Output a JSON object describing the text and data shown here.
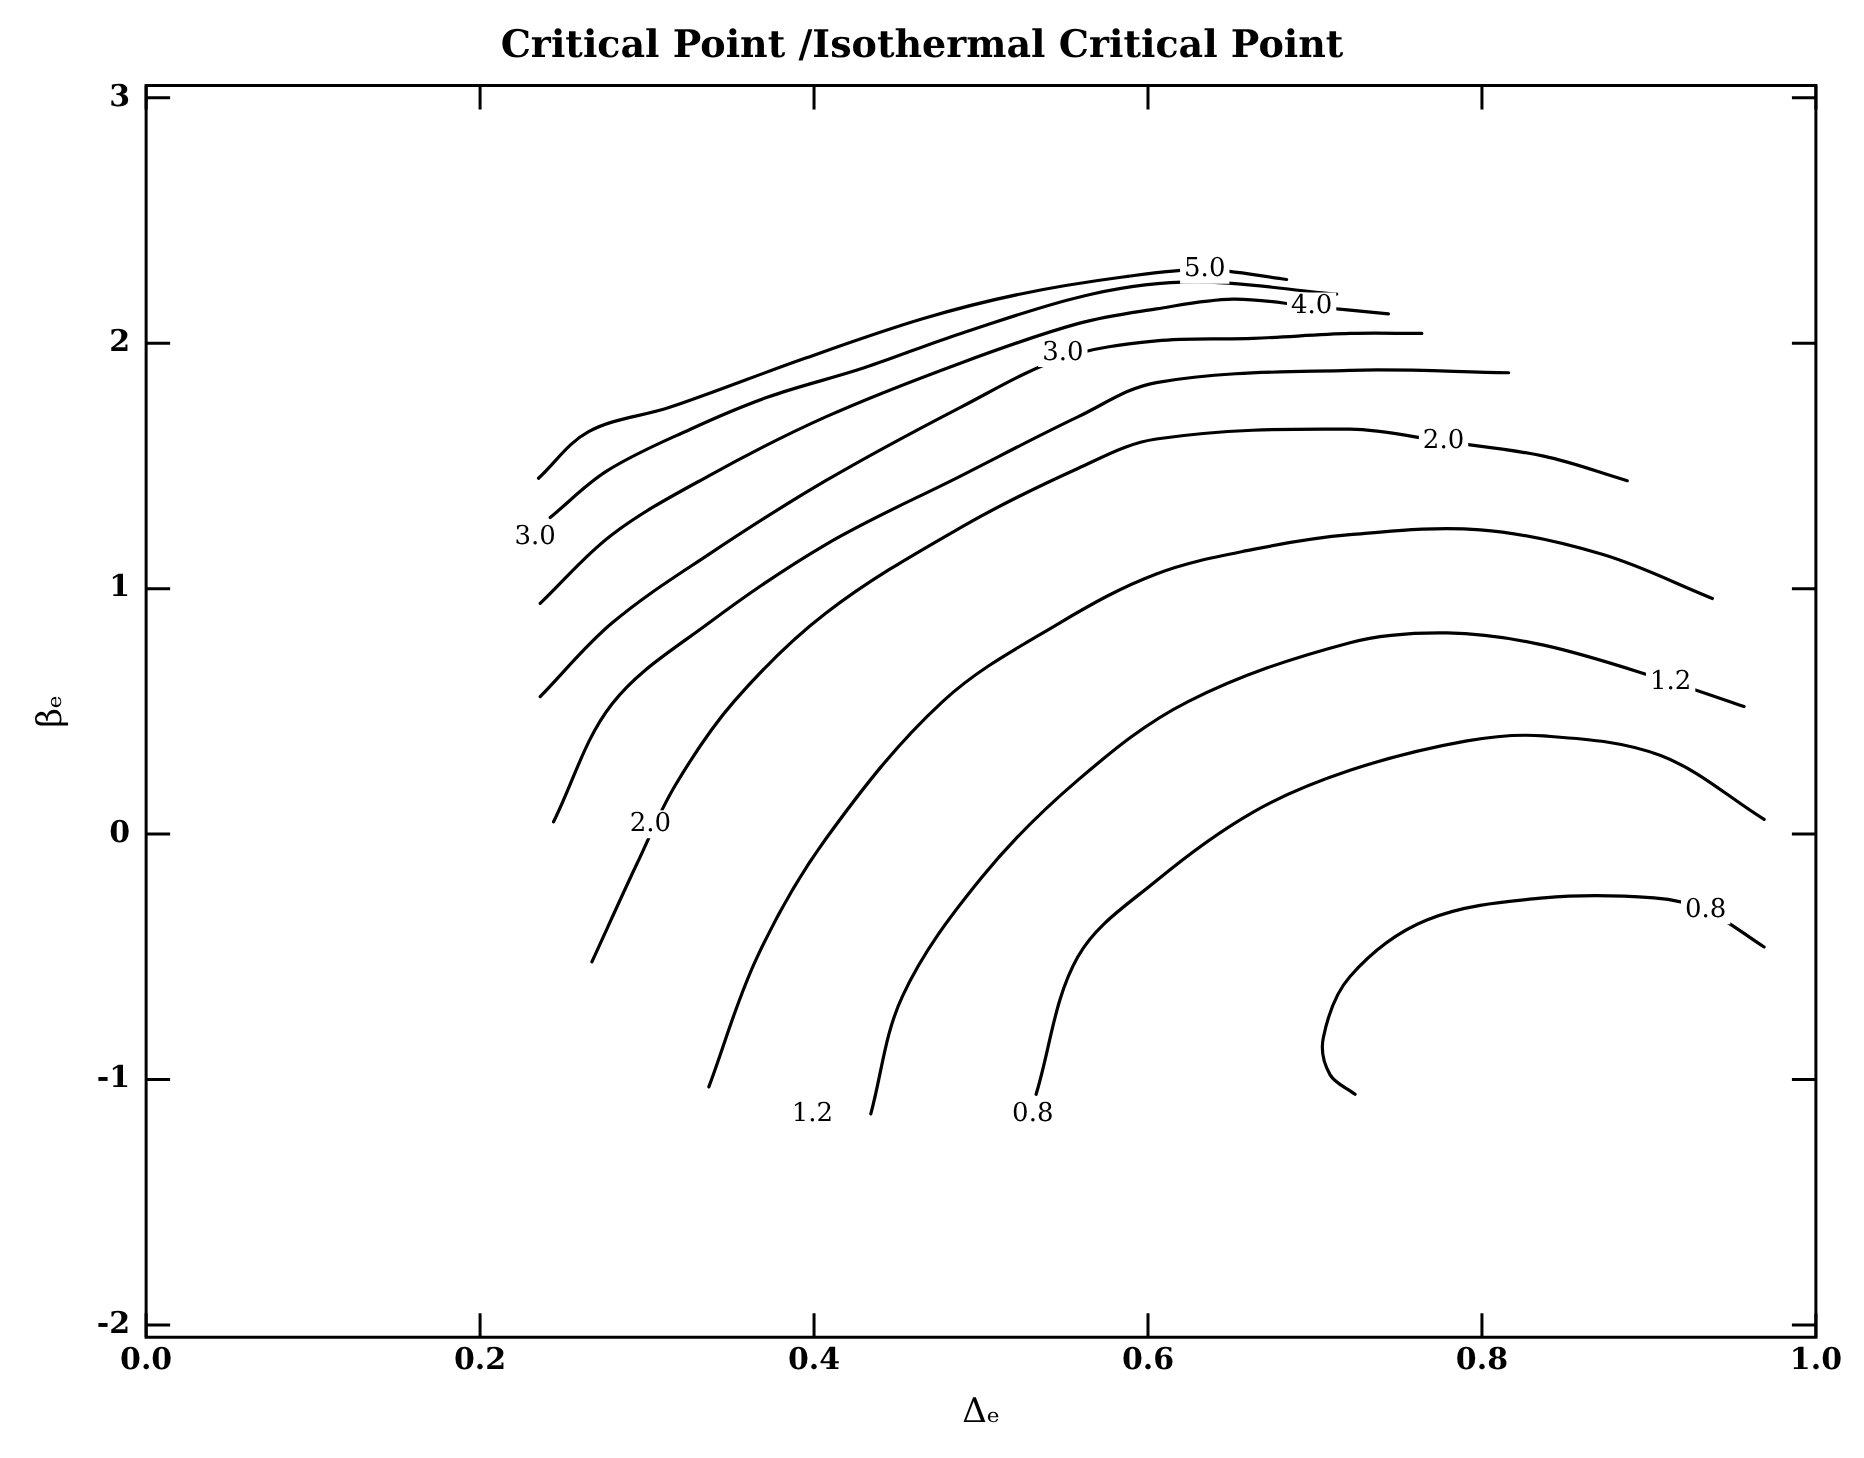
{
  "chart_data": {
    "type": "line",
    "title": "Critical Point /Isothermal Critical Point",
    "xlabel": "Δₑ",
    "ylabel": "βₑ",
    "xlim": [
      0,
      1
    ],
    "ylim": [
      -2.05,
      3.05
    ],
    "xticks": [
      {
        "value": 0,
        "label": "0.0"
      },
      0.2,
      0.4,
      0.6,
      0.8,
      {
        "value": 1,
        "label": "1.0"
      }
    ],
    "yticks": [
      -2,
      -1,
      0,
      1,
      2,
      3
    ],
    "grid": false,
    "legend": false,
    "marker": "none",
    "line_style": "solid",
    "series": [
      {
        "color": "#000000",
        "x": [
          0.235,
          0.265,
          0.314,
          0.395,
          0.465,
          0.523,
          0.585,
          0.634,
          0.683
        ],
        "values": [
          1.45,
          1.64,
          1.74,
          1.94,
          2.1,
          2.2,
          2.27,
          2.3,
          2.26
        ]
      },
      {
        "color": "#000000",
        "x": [
          0.242,
          0.276,
          0.326,
          0.372,
          0.43,
          0.488,
          0.566,
          0.628,
          0.713
        ],
        "values": [
          1.29,
          1.48,
          1.65,
          1.78,
          1.9,
          2.04,
          2.2,
          2.25,
          2.2
        ]
      },
      {
        "color": "#000000",
        "x": [
          0.236,
          0.279,
          0.337,
          0.407,
          0.488,
          0.558,
          0.605,
          0.651,
          0.698,
          0.744
        ],
        "values": [
          0.94,
          1.22,
          1.46,
          1.7,
          1.92,
          2.08,
          2.14,
          2.18,
          2.15,
          2.12
        ]
      },
      {
        "color": "#000000",
        "x": [
          0.236,
          0.279,
          0.337,
          0.407,
          0.488,
          0.549,
          0.605,
          0.663,
          0.721,
          0.764
        ],
        "values": [
          0.56,
          0.86,
          1.14,
          1.44,
          1.74,
          1.94,
          2.01,
          2.02,
          2.04,
          2.04
        ]
      },
      {
        "color": "#000000",
        "x": [
          0.244,
          0.279,
          0.337,
          0.407,
          0.488,
          0.558,
          0.605,
          0.721,
          0.816
        ],
        "values": [
          0.05,
          0.53,
          0.86,
          1.18,
          1.46,
          1.7,
          1.84,
          1.89,
          1.88
        ]
      },
      {
        "color": "#000000",
        "x": [
          0.267,
          0.294,
          0.317,
          0.352,
          0.407,
          0.488,
          0.558,
          0.605,
          0.721,
          0.777,
          0.837,
          0.887
        ],
        "values": [
          -0.52,
          -0.12,
          0.2,
          0.54,
          0.9,
          1.25,
          1.49,
          1.61,
          1.65,
          1.6,
          1.54,
          1.44
        ]
      },
      {
        "color": "#000000",
        "x": [
          0.337,
          0.366,
          0.407,
          0.477,
          0.547,
          0.605,
          0.663,
          0.721,
          0.799,
          0.872,
          0.938
        ],
        "values": [
          -1.03,
          -0.5,
          -0.02,
          0.54,
          0.86,
          1.06,
          1.16,
          1.22,
          1.24,
          1.14,
          0.96
        ]
      },
      {
        "color": "#000000",
        "x": [
          0.434,
          0.453,
          0.5,
          0.558,
          0.624,
          0.721,
          0.779,
          0.837,
          0.913,
          0.957
        ],
        "values": [
          -1.14,
          -0.66,
          -0.18,
          0.22,
          0.54,
          0.78,
          0.82,
          0.77,
          0.62,
          0.52
        ]
      },
      {
        "color": "#000000",
        "x": [
          0.533,
          0.558,
          0.605,
          0.663,
          0.721,
          0.791,
          0.837,
          0.907,
          0.969
        ],
        "values": [
          -1.06,
          -0.5,
          -0.19,
          0.09,
          0.26,
          0.38,
          0.4,
          0.32,
          0.06
        ]
      },
      {
        "color": "#000000",
        "x": [
          0.724,
          0.709,
          0.705,
          0.721,
          0.767,
          0.837,
          0.903,
          0.934,
          0.969
        ],
        "values": [
          -1.06,
          -0.98,
          -0.83,
          -0.58,
          -0.35,
          -0.26,
          -0.26,
          -0.31,
          -0.46
        ]
      }
    ],
    "annotations": [
      {
        "text": "5.0",
        "x": 0.634,
        "y": 2.3
      },
      {
        "text": "4.0",
        "x": 0.698,
        "y": 2.15
      },
      {
        "text": "3.0",
        "x": 0.549,
        "y": 1.96
      },
      {
        "text": "3.0",
        "x": 0.233,
        "y": 1.21
      },
      {
        "text": "2.0",
        "x": 0.777,
        "y": 1.6
      },
      {
        "text": "2.0",
        "x": 0.302,
        "y": 0.04
      },
      {
        "text": "1.2",
        "x": 0.913,
        "y": 0.62
      },
      {
        "text": "1.2",
        "x": 0.399,
        "y": -1.14
      },
      {
        "text": "0.8",
        "x": 0.531,
        "y": -1.14
      },
      {
        "text": "0.8",
        "x": 0.934,
        "y": -0.31
      }
    ]
  }
}
